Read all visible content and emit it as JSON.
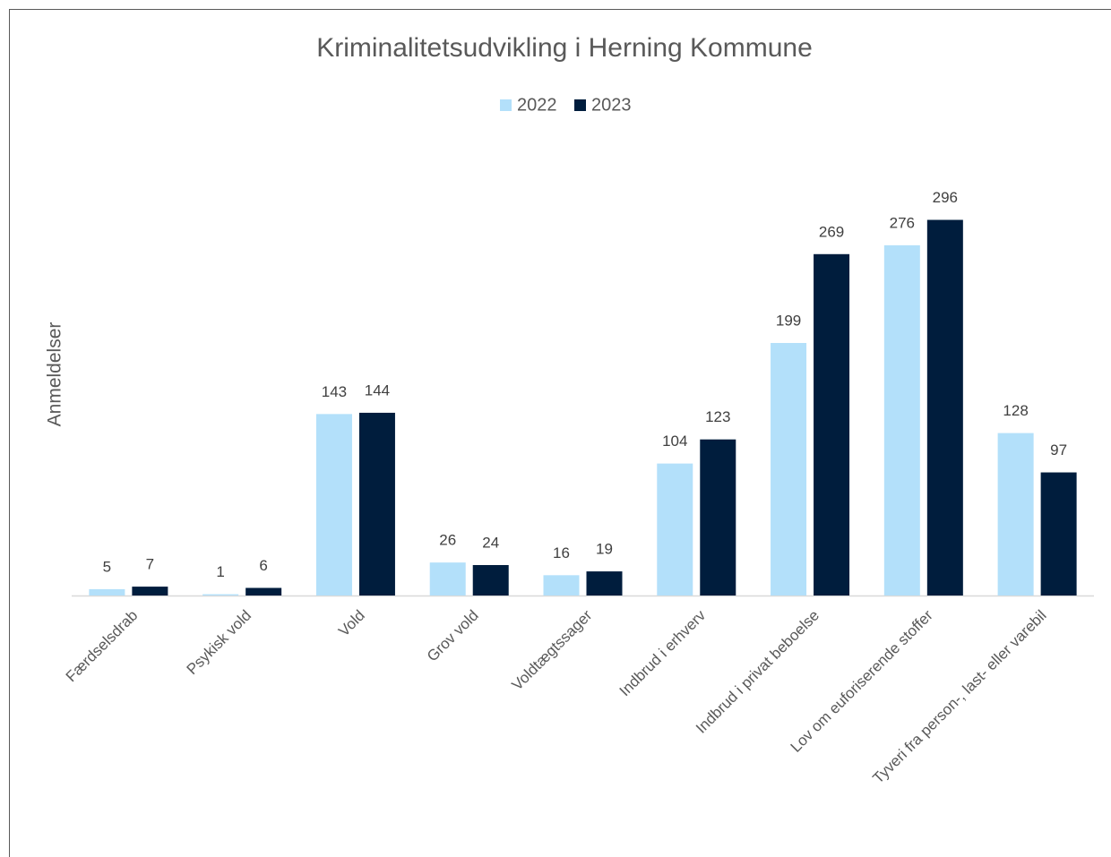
{
  "chart_data": {
    "type": "bar",
    "title": "Kriminalitetsudvikling i Herning Kommune",
    "y_label": "Anmeldelser",
    "categories": [
      "Færdselsdrab",
      "Psykisk vold",
      "Vold",
      "Grov vold",
      "Voldtægtssager",
      "Indbrud i erhverv",
      "Indbrud i privat beboelse",
      "Lov om euforiserende stoffer",
      "Tyveri fra person-, last- eller varebil"
    ],
    "series": [
      {
        "name": "2022",
        "color": "#b3e0fa",
        "values": [
          5,
          1,
          143,
          26,
          16,
          104,
          199,
          276,
          128
        ]
      },
      {
        "name": "2023",
        "color": "#001d3d",
        "values": [
          7,
          6,
          144,
          24,
          19,
          123,
          269,
          296,
          97
        ]
      }
    ],
    "ylim": [
      0,
      350
    ],
    "legend": "top"
  }
}
